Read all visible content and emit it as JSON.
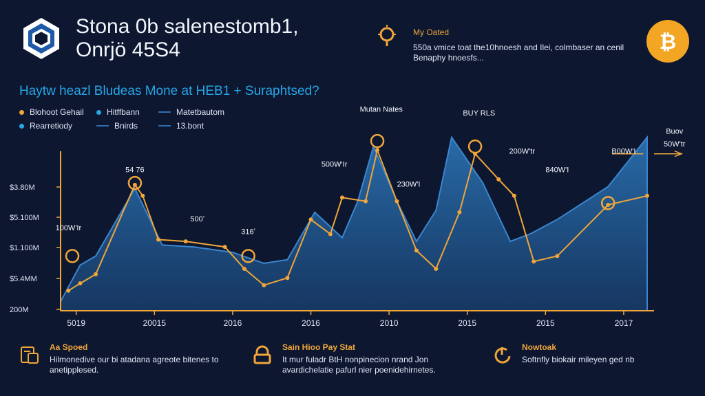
{
  "header": {
    "title_line1": "Stona 0b salenestomb1,",
    "title_line2": "Onrjö 45S4",
    "note_title": "My Oated",
    "note_text": "550a vmice toat the10hnoesh and Ilei, colmbaser an cenil Benaphy hnoesfs...",
    "question": "Haytw heazl Bludeas Mone at HEB1 + Suraphtsed?"
  },
  "legend": [
    {
      "label": "Blohoot Gehail",
      "color": "#f0a63a",
      "kind": "dot"
    },
    {
      "label": "Hitffbann",
      "color": "#27a7e7",
      "kind": "dot"
    },
    {
      "label": "Matetbautom",
      "color": "#2f6fb0",
      "kind": "line"
    },
    {
      "label": "Rearretiody",
      "color": "#27a7e7",
      "kind": "dot"
    },
    {
      "label": "Bnirds",
      "color": "#2f6fb0",
      "kind": "line"
    },
    {
      "label": "13.bont",
      "color": "#2f6fb0",
      "kind": "line"
    }
  ],
  "chart_data": {
    "type": "area",
    "categories": [
      "5019",
      "20015",
      "2016",
      "2016",
      "2010",
      "2015",
      "2015",
      "2017"
    ],
    "ytick_labels": [
      "200M",
      "$5.4MM",
      "$1.100M",
      "$5.100M",
      "$3.80M"
    ],
    "area_series": {
      "x": [
        0,
        0.25,
        0.45,
        0.95,
        1.3,
        1.7,
        2.2,
        2.6,
        2.9,
        3.25,
        3.6,
        3.8,
        4.0,
        4.3,
        4.55,
        4.8,
        5.0,
        5.4,
        5.75,
        6.0,
        6.35,
        7.0,
        7.5
      ],
      "y": [
        0.5,
        2.5,
        3.0,
        6.7,
        3.6,
        3.5,
        3.2,
        2.6,
        2.8,
        5.4,
        4.0,
        6.0,
        9.0,
        6.0,
        3.8,
        5.5,
        9.5,
        7.0,
        3.8,
        4.2,
        5.0,
        6.8,
        9.5
      ]
    },
    "line_series": {
      "x": [
        0.1,
        0.25,
        0.45,
        0.95,
        1.05,
        1.25,
        1.6,
        2.1,
        2.35,
        2.6,
        2.9,
        3.2,
        3.45,
        3.6,
        3.9,
        4.05,
        4.3,
        4.55,
        4.8,
        5.1,
        5.3,
        5.6,
        5.8,
        6.05,
        6.35,
        7.0,
        7.5
      ],
      "y": [
        1.1,
        1.5,
        2.0,
        6.9,
        6.3,
        3.9,
        3.8,
        3.5,
        2.3,
        1.4,
        1.8,
        5.0,
        4.2,
        6.2,
        6.0,
        8.8,
        6.0,
        3.3,
        2.3,
        5.4,
        8.6,
        7.2,
        6.3,
        2.7,
        3.0,
        5.8,
        6.3
      ]
    },
    "highlights": [
      {
        "x": 0.15,
        "y": 3.0
      },
      {
        "x": 0.95,
        "y": 7.0
      },
      {
        "x": 2.4,
        "y": 3.0
      },
      {
        "x": 4.05,
        "y": 9.3
      },
      {
        "x": 5.3,
        "y": 9.0
      },
      {
        "x": 7.0,
        "y": 5.9
      }
    ],
    "annotations": [
      {
        "text": "54 76",
        "x": 0.95,
        "y": 7.6
      },
      {
        "text": "100W'Ir",
        "x": 0.1,
        "y": 4.4
      },
      {
        "text": "500ʼ",
        "x": 1.75,
        "y": 4.9
      },
      {
        "text": "316ʼ",
        "x": 2.4,
        "y": 4.2
      },
      {
        "text": "500W'Ir",
        "x": 3.5,
        "y": 7.9
      },
      {
        "text": "Mutan Nates",
        "x": 4.1,
        "y": 10.9
      },
      {
        "text": "230W'I",
        "x": 4.45,
        "y": 6.8
      },
      {
        "text": "BUY RLS",
        "x": 5.35,
        "y": 10.7
      },
      {
        "text": "200W'tr",
        "x": 5.9,
        "y": 8.6
      },
      {
        "text": "840W'I",
        "x": 6.35,
        "y": 7.6
      },
      {
        "text": "B00W'I",
        "x": 7.2,
        "y": 8.6
      },
      {
        "text": "Buov",
        "x": 7.85,
        "y": 9.7
      },
      {
        "text": "50W'tr",
        "x": 7.85,
        "y": 9.0
      }
    ],
    "title": "",
    "xlabel": "",
    "ylabel": "",
    "ylim": [
      0,
      11
    ],
    "grid": false,
    "legend_position": "top-left"
  },
  "footer": [
    {
      "title": "Aa Spoed",
      "text": "Hilmonedive our bi atadana agreote bitenes to anetipplesed.",
      "icon": "chip-icon"
    },
    {
      "title": "Sain Hioo Pay Stat",
      "text": "It mur fuladr BtH nonpinecion nrand Jon avardichelatie pafurl nier poenidehirnetes.",
      "icon": "lock-icon"
    },
    {
      "title": "Nowtoak",
      "text": "Softnfly biokair mileyen ged nb",
      "icon": "power-icon"
    }
  ]
}
